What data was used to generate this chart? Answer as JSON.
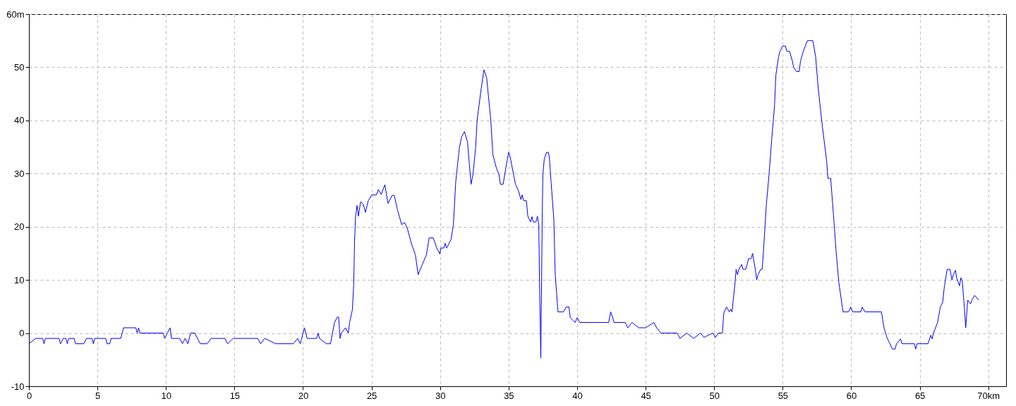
{
  "chart_data": {
    "type": "line",
    "x": [
      0,
      0.5,
      1.0,
      1.1,
      1.2,
      2.2,
      2.3,
      2.5,
      2.7,
      2.8,
      2.9,
      3.3,
      3.4,
      4.0,
      4.2,
      4.6,
      4.7,
      4.8,
      5.6,
      5.7,
      5.9,
      6.0,
      6.7,
      6.9,
      7.8,
      7.9,
      8.0,
      8.1,
      9.8,
      9.9,
      10.1,
      10.3,
      10.4,
      11.0,
      11.2,
      11.4,
      11.6,
      11.8,
      12.1,
      12.5,
      13.0,
      13.3,
      14.3,
      14.5,
      14.9,
      16.7,
      16.9,
      17.2,
      18.0,
      19.3,
      19.6,
      19.8,
      20.1,
      20.3,
      21.0,
      21.1,
      21.2,
      21.7,
      22.0,
      22.3,
      22.5,
      22.6,
      22.7,
      22.8,
      23.1,
      23.3,
      23.4,
      23.6,
      23.7,
      23.76,
      23.83,
      23.94,
      24.04,
      24.2,
      24.4,
      24.55,
      24.76,
      25.02,
      25.36,
      25.5,
      25.7,
      25.97,
      26.2,
      26.5,
      26.66,
      26.9,
      27.2,
      27.4,
      27.6,
      27.9,
      28.2,
      28.4,
      28.7,
      29.0,
      29.2,
      29.5,
      29.76,
      29.98,
      30.06,
      30.28,
      30.36,
      30.48,
      30.8,
      30.97,
      31.14,
      31.4,
      31.57,
      31.78,
      32.0,
      32.14,
      32.26,
      32.4,
      32.6,
      32.7,
      33.0,
      33.2,
      33.4,
      33.7,
      33.85,
      34.1,
      34.3,
      34.4,
      34.6,
      34.8,
      35.0,
      35.1,
      35.4,
      35.5,
      35.7,
      35.9,
      35.98,
      36.1,
      36.3,
      36.4,
      36.6,
      36.7,
      36.8,
      37.0,
      37.1,
      37.2,
      37.25,
      37.35,
      37.45,
      37.5,
      37.6,
      37.77,
      37.9,
      37.97,
      38.1,
      38.3,
      38.4,
      38.6,
      39.0,
      39.2,
      39.4,
      39.5,
      39.85,
      40.0,
      40.2,
      42.3,
      42.45,
      42.7,
      43.5,
      43.7,
      44.0,
      44.5,
      45.0,
      45.6,
      45.8,
      46.1,
      47.3,
      47.5,
      48.0,
      48.5,
      49.0,
      49.25,
      49.9,
      50.1,
      50.3,
      50.6,
      50.7,
      50.9,
      51.1,
      51.2,
      51.3,
      51.5,
      51.6,
      51.7,
      51.8,
      52.0,
      52.1,
      52.3,
      52.4,
      52.5,
      52.7,
      52.8,
      53.0,
      53.1,
      53.2,
      53.4,
      53.5,
      53.6,
      53.8,
      54.0,
      54.2,
      54.4,
      54.5,
      54.7,
      54.8,
      55.0,
      55.2,
      55.3,
      55.5,
      55.7,
      55.8,
      56.0,
      56.2,
      56.3,
      56.5,
      56.8,
      57.2,
      57.4,
      57.6,
      57.9,
      58.2,
      58.3,
      58.5,
      58.7,
      58.9,
      59.1,
      59.4,
      59.8,
      59.96,
      60.1,
      60.7,
      60.8,
      61.0,
      62.2,
      62.4,
      62.6,
      63.0,
      63.2,
      63.3,
      63.6,
      63.7,
      64.6,
      64.7,
      64.8,
      65.6,
      65.8,
      65.9,
      66.0,
      66.3,
      66.5,
      66.67,
      66.8,
      67.0,
      67.2,
      67.35,
      67.45,
      67.6,
      67.7,
      67.9,
      68.0,
      68.1,
      68.25,
      68.35,
      68.5,
      68.7,
      68.8,
      69.0,
      69.3
    ],
    "series": [
      {
        "color": "#0000ff",
        "values": [
          -2,
          -1,
          -1,
          -2,
          -1,
          -1,
          -2,
          -1,
          -1,
          -2,
          -1,
          -1,
          -2,
          -2,
          -1,
          -1,
          -2,
          -1,
          -1,
          -2,
          -2,
          -1,
          -1,
          1,
          1,
          0,
          1,
          0,
          0,
          -1,
          0,
          1,
          -1,
          -1,
          -2,
          -1,
          -2,
          0,
          0,
          -2,
          -2,
          -1,
          -1,
          -2,
          -1,
          -1,
          -2,
          -1,
          -2,
          -2,
          -1,
          -2,
          1,
          -1,
          -1,
          0,
          -1,
          -2,
          -2,
          2,
          3,
          3,
          -1,
          0,
          1,
          0,
          2,
          4.4,
          9.3,
          17.3,
          21.8,
          24,
          22,
          24.7,
          24.2,
          22.7,
          24.9,
          26,
          26,
          27,
          26.1,
          27.9,
          24.4,
          25.9,
          25.9,
          23.1,
          20.4,
          20.8,
          19.8,
          16.9,
          14.7,
          11,
          12.9,
          14.7,
          17.9,
          17.9,
          16,
          14.9,
          16,
          16,
          16.9,
          16,
          17.6,
          20.4,
          28.4,
          34.7,
          36.9,
          37.9,
          36,
          31.6,
          28,
          29.8,
          35.1,
          40,
          46,
          49.5,
          48,
          40,
          33.6,
          31.1,
          29.8,
          28,
          28,
          31.1,
          34,
          33.3,
          29.3,
          28,
          26.9,
          25.1,
          26,
          24.9,
          24.9,
          22,
          20.9,
          21.9,
          20.9,
          20.9,
          22,
          20.4,
          10.4,
          -4.7,
          21.3,
          29.8,
          32.7,
          34,
          34,
          33.1,
          28.4,
          21.3,
          11.1,
          4,
          4,
          4.9,
          4.9,
          2.9,
          2,
          2.9,
          2,
          2,
          4,
          2,
          2,
          1,
          2,
          1,
          1,
          2,
          1,
          0,
          0,
          -1,
          0,
          -1,
          0,
          -0.8,
          0,
          -0.8,
          0,
          0,
          3.8,
          4.9,
          4,
          4.5,
          4,
          8.9,
          12,
          11,
          12,
          12.9,
          12,
          12,
          12.9,
          14,
          14,
          15,
          12,
          10,
          11,
          12,
          12,
          15.6,
          24,
          29.8,
          36.5,
          42.7,
          48.5,
          52,
          53,
          54,
          54,
          53,
          53,
          51.2,
          50,
          49.2,
          49.2,
          51.2,
          53,
          55,
          55,
          52,
          45.8,
          38.7,
          32.5,
          29.1,
          29.1,
          22.3,
          15.2,
          9.4,
          4,
          4,
          4.9,
          4,
          4,
          4.9,
          4,
          4,
          0.9,
          -0.8,
          -3,
          -3,
          -2,
          -1.1,
          -2,
          -2,
          -3,
          -2,
          -2,
          -0.4,
          -1.1,
          0,
          2,
          4.9,
          5.8,
          8.9,
          12,
          12,
          10,
          11,
          11.8,
          10.3,
          8.9,
          10.4,
          9.8,
          4.9,
          1,
          6.2,
          5.5,
          6.2,
          7.1,
          6.2
        ]
      }
    ],
    "xlim": [
      0,
      71.3
    ],
    "ylim": [
      -10,
      60
    ],
    "xticks": [
      0,
      5,
      10,
      15,
      20,
      25,
      30,
      35,
      40,
      45,
      50,
      55,
      60,
      65,
      {
        "value": 70,
        "label": "70km"
      }
    ],
    "yticks": [
      -10,
      0,
      10,
      20,
      30,
      40,
      50,
      {
        "value": 60,
        "label": "60m"
      }
    ],
    "grid": true
  }
}
